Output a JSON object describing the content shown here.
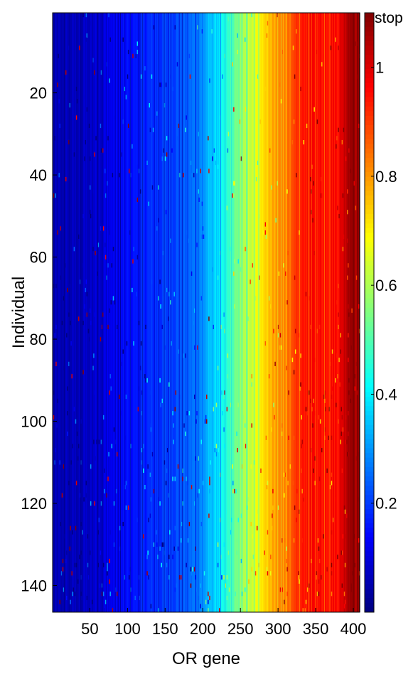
{
  "chart_data": {
    "type": "heatmap",
    "xlabel": "OR gene",
    "ylabel": "Individual",
    "xlim": [
      1,
      408
    ],
    "ylim": [
      1,
      146
    ],
    "x_ticks": [
      50,
      100,
      150,
      200,
      250,
      300,
      350,
      400
    ],
    "y_ticks": [
      20,
      40,
      60,
      80,
      100,
      120,
      140
    ],
    "colormap": "jet",
    "colorbar": {
      "range": [
        0,
        1.1
      ],
      "ticks": [
        0.2,
        0.4,
        0.6,
        0.8,
        1
      ],
      "top_label": "stop"
    },
    "column_value_profile": {
      "description_free": true,
      "x": [
        1,
        40,
        80,
        120,
        150,
        180,
        200,
        220,
        240,
        260,
        280,
        300,
        320,
        335,
        380,
        395,
        408
      ],
      "value": [
        0.05,
        0.07,
        0.12,
        0.17,
        0.2,
        0.24,
        0.3,
        0.38,
        0.5,
        0.62,
        0.72,
        0.8,
        0.87,
        0.95,
        0.96,
        1.08,
        1.08
      ]
    }
  }
}
